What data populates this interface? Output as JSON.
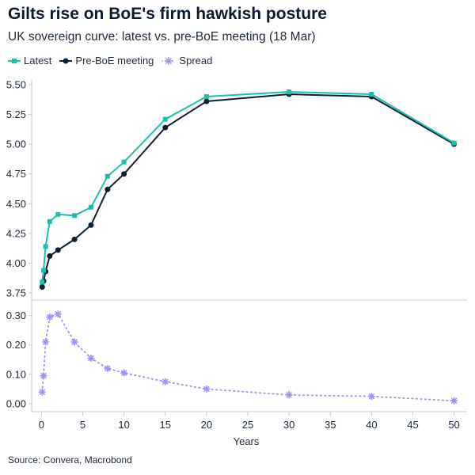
{
  "title": "Gilts rise on BoE's firm hawkish posture",
  "subtitle": "UK sovereign curve: latest vs. pre-BoE meeting (18 Mar)",
  "source": "Source: Convera, Macrobond",
  "colors": {
    "latest": "#1cbfae",
    "pre_boe": "#0e1f33",
    "spread": "#a58ff0",
    "axis": "#c8c8c8",
    "text": "#1e2a3a"
  },
  "chart_data": [
    {
      "type": "line",
      "panel": "top",
      "legend": "top-left",
      "xlim": [
        -1,
        51
      ],
      "ylim": [
        3.75,
        5.5
      ],
      "yticks": [
        "3.75",
        "4.00",
        "4.25",
        "4.50",
        "4.75",
        "5.00",
        "5.25",
        "5.50"
      ],
      "series": [
        {
          "name": "Latest",
          "marker": "square",
          "x": [
            0.083,
            0.25,
            0.5,
            1,
            2,
            4,
            6,
            8,
            10,
            15,
            20,
            30,
            40,
            50
          ],
          "values": [
            3.84,
            3.94,
            4.14,
            4.35,
            4.41,
            4.4,
            4.47,
            4.73,
            4.85,
            5.21,
            5.4,
            5.44,
            5.42,
            5.01
          ]
        },
        {
          "name": "Pre-BoE meeting",
          "marker": "circle",
          "x": [
            0.083,
            0.25,
            0.5,
            1,
            2,
            4,
            6,
            8,
            10,
            15,
            20,
            30,
            40,
            50
          ],
          "values": [
            3.8,
            3.85,
            3.93,
            4.06,
            4.11,
            4.2,
            4.32,
            4.62,
            4.75,
            5.14,
            5.36,
            5.42,
            5.4,
            5.0
          ]
        }
      ]
    },
    {
      "type": "scatter",
      "panel": "bottom",
      "xlabel": "Years",
      "xlim": [
        -1,
        51
      ],
      "ylim": [
        0,
        0.35
      ],
      "yticks": [
        "0.00",
        "0.10",
        "0.20",
        "0.30"
      ],
      "xticks": [
        "0",
        "5",
        "10",
        "15",
        "20",
        "25",
        "30",
        "35",
        "40",
        "45",
        "50"
      ],
      "series": [
        {
          "name": "Spread",
          "marker": "asterisk",
          "line": "dotted",
          "x": [
            0.083,
            0.25,
            0.5,
            1,
            2,
            4,
            6,
            8,
            10,
            15,
            20,
            30,
            40,
            50
          ],
          "values": [
            0.04,
            0.095,
            0.21,
            0.295,
            0.305,
            0.21,
            0.155,
            0.12,
            0.105,
            0.075,
            0.05,
            0.03,
            0.025,
            0.01
          ]
        }
      ]
    }
  ]
}
